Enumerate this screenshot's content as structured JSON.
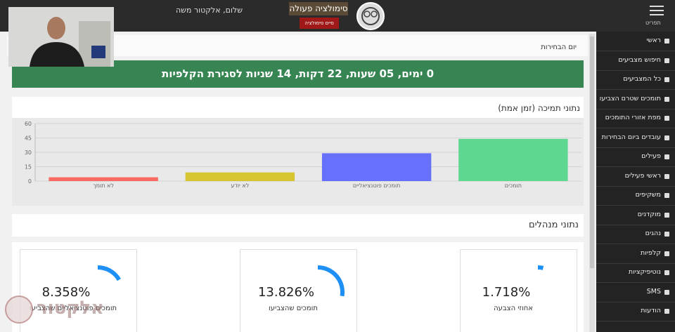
{
  "header": {
    "menu_label": "תפריט",
    "greeting": "שלום, אלקטור משה",
    "simulation_title": "סימולציה פעולה",
    "end_button": "סיים סימולציה"
  },
  "sidebar": {
    "items": [
      "ראשי",
      "חיפוש מצביעים",
      "כל המצביעים",
      "תומכים שטרם הצביעו",
      "מפת אזורי התומכים",
      "עובדים ביום הבחירות",
      "פעילים",
      "ראשי פעילים",
      "משקיפים",
      "מוקדנים",
      "נהגים",
      "קלפיות",
      "נוטיפיקציות",
      "SMS",
      "הודעות"
    ]
  },
  "breadcrumb": "יום הבחירות",
  "countdown": "0 ימים, 05 שעות, 22 דקות, 14 שניות לסגירת הקלפיות",
  "chart_data": {
    "type": "bar",
    "title": "נתוני תמיכה (זמן אמת)",
    "categories": [
      "לא תומך",
      "לא יודע",
      "תומכים פוטנציאליים",
      "תומכים"
    ],
    "series": [
      {
        "name": "תמיכה",
        "colors": [
          "#f96a63",
          "#d6c430",
          "#6670fb",
          "#5ed891"
        ],
        "values": [
          4,
          9,
          29,
          44
        ]
      }
    ],
    "ylim": [
      0,
      60
    ],
    "yticks": [
      0,
      15,
      30,
      45,
      60
    ],
    "grid": true
  },
  "managers_panel": {
    "title": "נתוני מנהלים",
    "cards": [
      {
        "label": "אחוזי הצבעה",
        "value": 1.718,
        "value_label": "1.718%"
      },
      {
        "label": "תומכים שהצביעו",
        "value": 13.826,
        "value_label": "13.826%"
      },
      {
        "label": "תומכים פוטנציאליים שהצביעו",
        "value": 8.358,
        "value_label": "8.358%"
      }
    ]
  },
  "watermark": "אלקטור"
}
